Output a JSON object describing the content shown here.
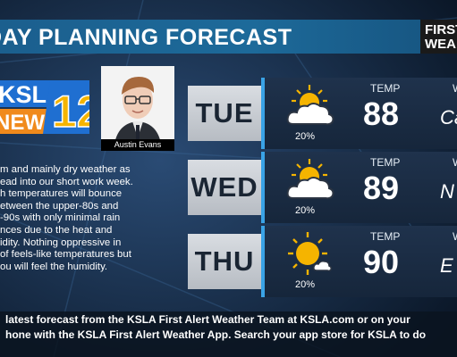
{
  "header": {
    "title": "DAY PLANNING FORECAST",
    "badge_line1": "FIRST",
    "badge_line2": "WEA"
  },
  "logo": {
    "text_top": "KSLA",
    "text_bottom": "NEWS",
    "number": "12"
  },
  "anchor": {
    "name": "Austin Evans"
  },
  "description": [
    "m and mainly dry weather as",
    "ead into our short work week.",
    "h temperatures will bounce",
    "etween the upper-80s and",
    "-90s with only minimal rain",
    "nces due to the heat and",
    "idity. Nothing oppressive in",
    "of feels-like temperatures but",
    "ou will feel the humidity."
  ],
  "days": [
    {
      "day": "TUE",
      "precip": "20%",
      "temp_label": "TEMP",
      "temp": "88",
      "wind_label": "W",
      "wind": "Ca",
      "icon": "partly-sunny-icon"
    },
    {
      "day": "WED",
      "precip": "20%",
      "temp_label": "TEMP",
      "temp": "89",
      "wind_label": "W",
      "wind": "N",
      "icon": "partly-sunny-icon"
    },
    {
      "day": "THU",
      "precip": "20%",
      "temp_label": "TEMP",
      "temp": "90",
      "wind_label": "W",
      "wind": "E",
      "icon": "mostly-sunny-icon"
    }
  ],
  "footer": {
    "line1": "latest forecast from the KSLA First Alert Weather Team at KSLA.com or on your",
    "line2": "hone with the KSLA First Alert Weather App. Search your app store for KSLA to do"
  },
  "colors": {
    "accent": "#3aa3e6",
    "title_bar": "#1b5f8e",
    "logo_orange": "#f08a1c",
    "logo_blue": "#1f6fd1",
    "sun": "#f5b400"
  }
}
